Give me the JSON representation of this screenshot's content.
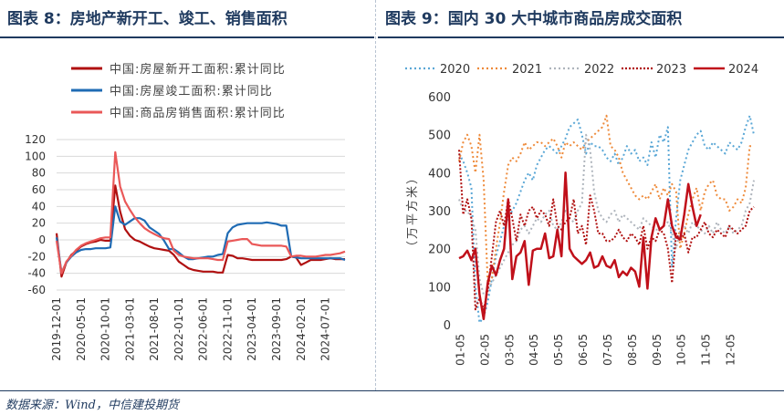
{
  "panels": {
    "left_title": "图表 8：房地产新开工、竣工、销售面积",
    "right_title": "图表 9：国内 30 大中城市商品房成交面积"
  },
  "source": "数据来源：Wind，中信建投期货",
  "chart_data": [
    {
      "type": "line",
      "title": "",
      "xlabel": "",
      "ylabel": "",
      "ylim": [
        -60,
        120
      ],
      "yticks": [
        -60,
        -40,
        -20,
        0,
        20,
        40,
        60,
        80,
        100,
        120
      ],
      "xticks": [
        "2019-12-01",
        "2020-05-01",
        "2020-10-01",
        "2021-03-01",
        "2021-08-01",
        "2022-01-01",
        "2022-06-01",
        "2022-11-01",
        "2023-04-01",
        "2023-09-01",
        "2024-02-01",
        "2024-07-01"
      ],
      "x_start": "2019-12",
      "grid": true,
      "legend_position": "top-left",
      "series": [
        {
          "name": "中国:房屋新开工面积:累计同比",
          "color": "#b01010",
          "values": [
            8,
            -44,
            -27,
            -18,
            -13,
            -8,
            -5,
            -3,
            -2,
            0,
            -1,
            -1,
            65,
            34,
            13,
            5,
            0,
            -2,
            -5,
            -8,
            -10,
            -11,
            -12,
            -13,
            -18,
            -26,
            -30,
            -34,
            -36,
            -37,
            -38,
            -38,
            -38,
            -39,
            -39,
            -18,
            -19,
            -22,
            -22,
            -23,
            -24,
            -24,
            -24,
            -24,
            -24,
            -24,
            -24,
            -23,
            -20,
            -21,
            -30,
            -27,
            -24,
            -24,
            -24,
            -23,
            -22,
            -23,
            -23,
            -23
          ]
        },
        {
          "name": "中国:房屋竣工面积:累计同比",
          "color": "#1f6bb4",
          "values": [
            3,
            -39,
            -27,
            -20,
            -15,
            -12,
            -11,
            -11,
            -10,
            -10,
            -10,
            -9,
            40,
            22,
            18,
            22,
            26,
            26,
            23,
            15,
            11,
            7,
            -1,
            -11,
            -11,
            -15,
            -20,
            -23,
            -23,
            -22,
            -21,
            -20,
            -20,
            -18,
            -17,
            8,
            15,
            18,
            19,
            20,
            20,
            20,
            20,
            21,
            20,
            19,
            17,
            17,
            -20,
            -21,
            -22,
            -22,
            -22,
            -22,
            -22,
            -22,
            -22,
            -22,
            -22,
            -24
          ]
        },
        {
          "name": "中国:商品房销售面积:累计同比",
          "color": "#ea5858",
          "values": [
            -1,
            -40,
            -26,
            -19,
            -12,
            -7,
            -4,
            -2,
            0,
            2,
            3,
            3,
            105,
            64,
            46,
            36,
            27,
            20,
            14,
            10,
            7,
            4,
            2,
            1,
            -13,
            -18,
            -20,
            -21,
            -22,
            -22,
            -22,
            -22,
            -23,
            -24,
            -24,
            -2,
            -1,
            0,
            1,
            1,
            -5,
            -6,
            -7,
            -7,
            -7,
            -7,
            -7,
            -8,
            -20,
            -19,
            -19,
            -20,
            -20,
            -20,
            -19,
            -18,
            -18,
            -17,
            -16,
            -14
          ]
        }
      ]
    },
    {
      "type": "line",
      "title": "",
      "xlabel": "",
      "ylabel": "（万平方米）",
      "ylim": [
        0,
        600
      ],
      "yticks": [
        0,
        100,
        200,
        300,
        400,
        500,
        600
      ],
      "xticks": [
        "01-05",
        "02-05",
        "03-05",
        "04-05",
        "05-05",
        "06-05",
        "07-05",
        "08-05",
        "09-05",
        "10-05",
        "11-05",
        "12-05"
      ],
      "grid": false,
      "legend_position": "top",
      "series": [
        {
          "name": "2020",
          "color": "#5aa7d6",
          "dash": "2,3",
          "values": [
            450,
            430,
            400,
            360,
            100,
            5,
            20,
            60,
            120,
            180,
            220,
            260,
            280,
            300,
            320,
            350,
            380,
            400,
            380,
            420,
            440,
            460,
            470,
            460,
            450,
            470,
            490,
            520,
            530,
            540,
            500,
            450,
            480,
            470,
            470,
            460,
            440,
            430,
            450,
            420,
            440,
            470,
            450,
            460,
            430,
            440,
            420,
            480,
            440,
            500,
            480,
            520,
            150,
            280,
            380,
            420,
            460,
            480,
            500,
            510,
            470,
            460,
            480,
            470,
            460,
            450,
            480,
            470,
            460,
            480,
            520,
            550,
            500
          ]
        },
        {
          "name": "2021",
          "color": "#ee8a3a",
          "dash": "2,3",
          "values": [
            430,
            480,
            500,
            470,
            400,
            500,
            380,
            110,
            120,
            200,
            270,
            350,
            420,
            440,
            430,
            450,
            480,
            460,
            470,
            480,
            480,
            470,
            480,
            490,
            470,
            440,
            480,
            470,
            480,
            470,
            460,
            480,
            490,
            500,
            510,
            520,
            550,
            470,
            460,
            440,
            400,
            380,
            360,
            340,
            330,
            340,
            330,
            350,
            370,
            330,
            360,
            340,
            370,
            350,
            200,
            240,
            290,
            330,
            360,
            300,
            350,
            370,
            380,
            340,
            330,
            330,
            300,
            310,
            330,
            320,
            360,
            470,
            470
          ]
        },
        {
          "name": "2022",
          "color": "#aeb4bc",
          "dash": "2,3",
          "values": [
            330,
            300,
            300,
            280,
            250,
            120,
            80,
            90,
            110,
            130,
            150,
            170,
            190,
            210,
            220,
            250,
            260,
            240,
            260,
            280,
            270,
            290,
            300,
            260,
            250,
            270,
            300,
            280,
            270,
            300,
            320,
            500,
            460,
            350,
            300,
            280,
            270,
            290,
            300,
            270,
            290,
            280,
            270,
            260,
            250,
            280,
            270,
            260,
            250,
            250,
            260,
            270,
            240,
            200,
            250,
            260,
            240,
            270,
            260,
            250,
            240,
            260,
            240,
            270,
            250,
            240,
            260,
            240,
            250,
            260,
            300,
            320,
            380
          ]
        },
        {
          "name": "2023",
          "color": "#b01010",
          "dash": "2,2",
          "values": [
            460,
            290,
            330,
            280,
            40,
            70,
            40,
            90,
            180,
            270,
            300,
            260,
            330,
            280,
            220,
            290,
            260,
            300,
            310,
            280,
            300,
            290,
            260,
            330,
            260,
            250,
            270,
            280,
            330,
            240,
            260,
            210,
            340,
            300,
            240,
            240,
            220,
            220,
            230,
            250,
            230,
            220,
            240,
            230,
            210,
            260,
            200,
            230,
            220,
            250,
            240,
            200,
            110,
            240,
            220,
            240,
            190,
            230,
            230,
            250,
            270,
            240,
            230,
            250,
            240,
            230,
            260,
            250,
            240,
            250,
            260,
            300,
            310
          ]
        },
        {
          "name": "2024",
          "color": "#c0101a",
          "width": 2.5,
          "values": [
            175,
            180,
            195,
            170,
            200,
            80,
            15,
            110,
            155,
            130,
            170,
            200,
            330,
            120,
            180,
            190,
            220,
            105,
            195,
            200,
            200,
            240,
            175,
            180,
            250,
            180,
            400,
            200,
            180,
            170,
            160,
            170,
            190,
            150,
            155,
            180,
            155,
            150,
            170,
            125,
            140,
            130,
            150,
            140,
            100,
            230,
            95,
            230,
            280,
            250,
            260,
            330,
            260,
            230,
            225,
            290,
            370,
            310,
            260,
            290
          ]
        }
      ]
    }
  ]
}
